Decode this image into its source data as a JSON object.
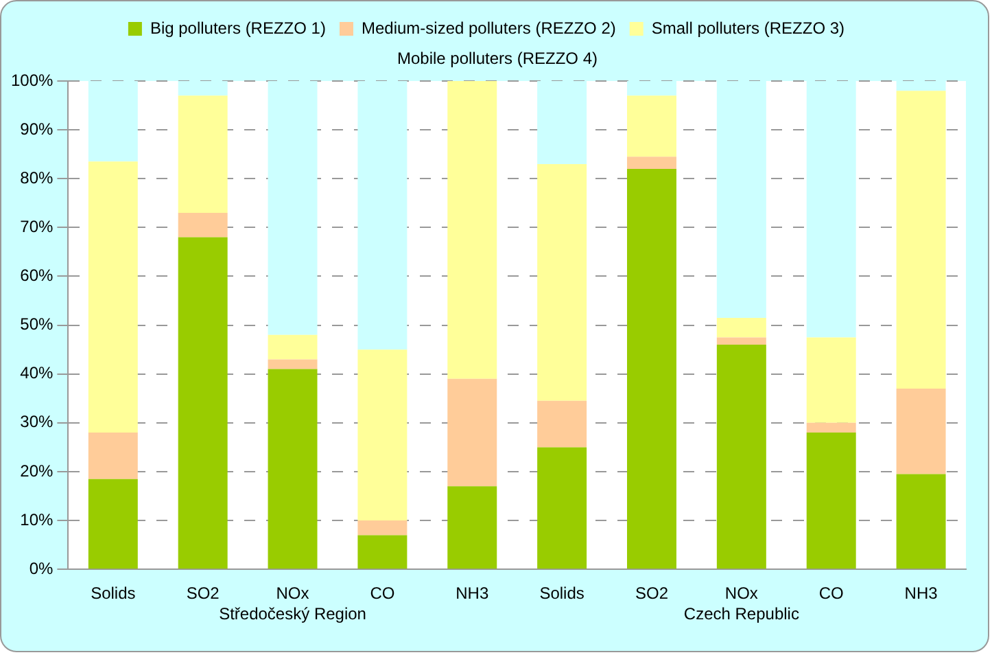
{
  "chart_data": {
    "type": "bar",
    "stacked": true,
    "categories": [
      "Solids",
      "SO2",
      "NOx",
      "CO",
      "NH3",
      "Solids",
      "SO2",
      "NOx",
      "CO",
      "NH3"
    ],
    "series": [
      {
        "name": "Big polluters (REZZO 1)",
        "color": "#99cc00",
        "values": [
          18.5,
          68,
          41,
          7,
          17,
          25,
          82,
          46,
          28,
          19.5
        ]
      },
      {
        "name": "Medium-sized polluters (REZZO 2)",
        "color": "#ffcc99",
        "values": [
          9.5,
          5,
          2,
          3,
          22,
          9.5,
          2.5,
          1.5,
          2,
          17.5
        ]
      },
      {
        "name": "Small polluters (REZZO 3)",
        "color": "#ffff99",
        "values": [
          55.5,
          24,
          5,
          35,
          61,
          48.5,
          12.5,
          4,
          17.5,
          61
        ]
      },
      {
        "name": "Mobile polluters (REZZO 4)",
        "color": "#ccffff",
        "values": [
          16.5,
          3,
          52,
          55,
          0,
          17,
          3,
          48.5,
          52.5,
          2
        ]
      }
    ],
    "ylim": [
      0,
      100
    ],
    "yticks": [
      {
        "value": 0,
        "label": "0%"
      },
      {
        "value": 10,
        "label": "10%"
      },
      {
        "value": 20,
        "label": "20%"
      },
      {
        "value": 30,
        "label": "30%"
      },
      {
        "value": 40,
        "label": "40%"
      },
      {
        "value": 50,
        "label": "50%"
      },
      {
        "value": 60,
        "label": "60%"
      },
      {
        "value": 70,
        "label": "70%"
      },
      {
        "value": 80,
        "label": "80%"
      },
      {
        "value": 90,
        "label": "90%"
      },
      {
        "value": 100,
        "label": "100%"
      }
    ],
    "annotations": [
      "Středočeský Region",
      "Czech Republic"
    ],
    "grid": "y",
    "legend": "top"
  }
}
